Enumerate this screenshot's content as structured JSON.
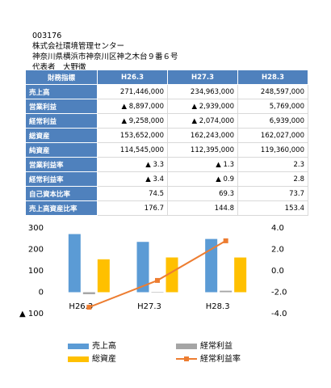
{
  "header": {
    "code": "003176",
    "company": "株式会社環境管理センター",
    "address": "神奈川県横浜市神奈川区神之木台９番６号",
    "representative": "代表者　大野徹"
  },
  "table": {
    "header": [
      "財務指標",
      "H26.3",
      "H27.3",
      "H28.3"
    ],
    "rows": [
      [
        "売上高",
        "271,446,000",
        "234,963,000",
        "248,597,000"
      ],
      [
        "営業利益",
        "▲ 8,897,000",
        "▲ 2,939,000",
        "5,769,000"
      ],
      [
        "経常利益",
        "▲ 9,258,000",
        "▲ 2,074,000",
        "6,939,000"
      ],
      [
        "総資産",
        "153,652,000",
        "162,243,000",
        "162,027,000"
      ],
      [
        "純資産",
        "114,545,000",
        "112,395,000",
        "119,360,000"
      ],
      [
        "営業利益率",
        "▲ 3.3",
        "▲ 1.3",
        "2.3"
      ],
      [
        "経常利益率",
        "▲ 3.4",
        "▲ 0.9",
        "2.8"
      ],
      [
        "自己資本比率",
        "74.5",
        "69.3",
        "73.7"
      ],
      [
        "売上高資産比率",
        "176.7",
        "144.8",
        "153.4"
      ]
    ]
  },
  "chart_data": {
    "type": "bar",
    "categories": [
      "H26.3",
      "H27.3",
      "H28.3"
    ],
    "series": [
      {
        "name": "売上高",
        "color": "#5b9bd5",
        "values": [
          271.446,
          234.963,
          248.597
        ]
      },
      {
        "name": "経常利益",
        "color": "#a5a5a5",
        "values": [
          -9.258,
          -2.074,
          6.939
        ]
      },
      {
        "name": "総資産",
        "color": "#ffc000",
        "values": [
          153.652,
          162.243,
          162.027
        ]
      },
      {
        "name": "経常利益率",
        "color": "#ed7d31",
        "type": "line",
        "axis": "y2",
        "values": [
          -3.4,
          -0.9,
          2.8
        ]
      }
    ],
    "ylim": [
      -100,
      300
    ],
    "yticks": [
      {
        "value": -100,
        "label": "▲ 100"
      },
      0,
      100,
      200,
      300
    ],
    "y2lim": [
      -4,
      4
    ],
    "y2ticks": [
      {
        "value": -4,
        "label": "-4.0"
      },
      {
        "value": -2,
        "label": "-2.0"
      },
      {
        "value": 0,
        "label": "0.0"
      },
      {
        "value": 2,
        "label": "2.0"
      },
      {
        "value": 4,
        "label": "4.0"
      }
    ]
  }
}
